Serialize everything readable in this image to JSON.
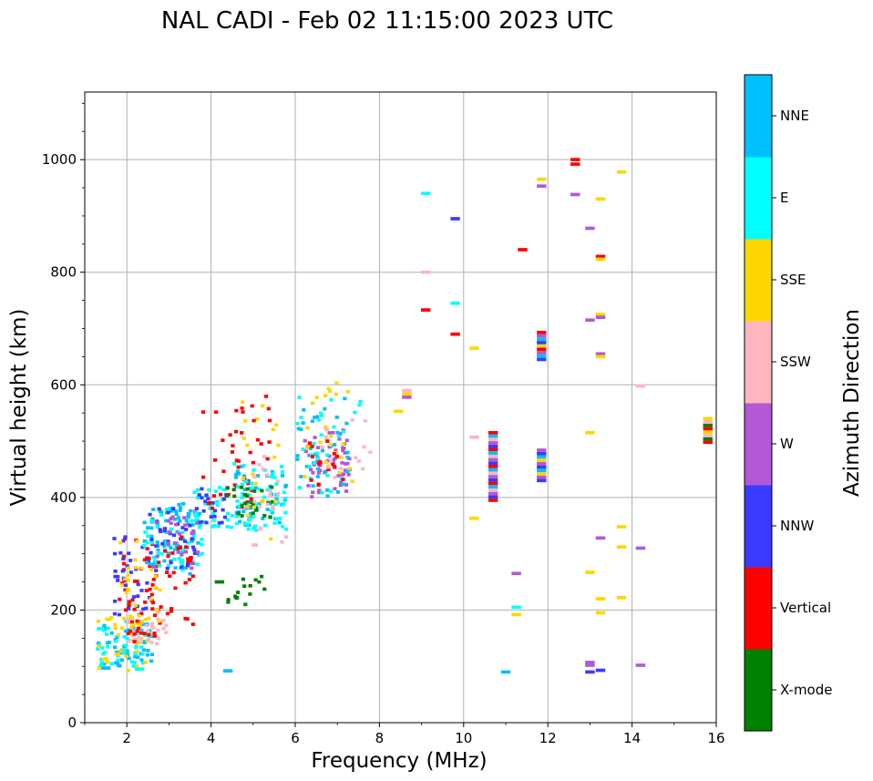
{
  "chart_data": {
    "type": "scatter",
    "title": "NAL CADI - Feb 02 11:15:00 2023 UTC",
    "xlabel": "Frequency (MHz)",
    "ylabel": "Virtual height (km)",
    "xlim": [
      1,
      16
    ],
    "ylim": [
      0,
      1120
    ],
    "xticks": [
      2,
      4,
      6,
      8,
      10,
      12,
      14,
      16
    ],
    "yticks": [
      0,
      200,
      400,
      600,
      800,
      1000
    ],
    "grid": true,
    "colorbar": {
      "label": "Azimuth Direction",
      "categories": [
        {
          "name": "X-mode",
          "color": "#008000"
        },
        {
          "name": "Vertical",
          "color": "#ff0000"
        },
        {
          "name": "NNW",
          "color": "#3b3bff"
        },
        {
          "name": "W",
          "color": "#b358d6"
        },
        {
          "name": "SSW",
          "color": "#ffb6c1"
        },
        {
          "name": "SSE",
          "color": "#ffd700"
        },
        {
          "name": "E",
          "color": "#00ffff"
        },
        {
          "name": "NNE",
          "color": "#00bfff"
        }
      ]
    },
    "clusters": [
      {
        "cat": "NNE",
        "f": [
          1.3,
          2.6
        ],
        "h": [
          100,
          180
        ],
        "n": 50,
        "seed": 1
      },
      {
        "cat": "E",
        "f": [
          1.3,
          2.6
        ],
        "h": [
          100,
          180
        ],
        "n": 40,
        "seed": 2
      },
      {
        "cat": "SSE",
        "f": [
          1.3,
          2.6
        ],
        "h": [
          90,
          190
        ],
        "n": 30,
        "seed": 3
      },
      {
        "cat": "SSW",
        "f": [
          2.0,
          3.0
        ],
        "h": [
          140,
          200
        ],
        "n": 30,
        "seed": 4
      },
      {
        "cat": "Vertical",
        "f": [
          1.8,
          2.8
        ],
        "h": [
          140,
          330
        ],
        "n": 55,
        "seed": 5
      },
      {
        "cat": "NNW",
        "f": [
          1.7,
          2.6
        ],
        "h": [
          190,
          330
        ],
        "n": 35,
        "seed": 6
      },
      {
        "cat": "SSE",
        "f": [
          1.8,
          2.8
        ],
        "h": [
          160,
          330
        ],
        "n": 30,
        "seed": 7
      },
      {
        "cat": "NNE",
        "f": [
          2.4,
          3.8
        ],
        "h": [
          260,
          390
        ],
        "n": 70,
        "seed": 8
      },
      {
        "cat": "E",
        "f": [
          2.4,
          3.8
        ],
        "h": [
          270,
          380
        ],
        "n": 45,
        "seed": 9
      },
      {
        "cat": "NNW",
        "f": [
          2.5,
          3.8
        ],
        "h": [
          270,
          380
        ],
        "n": 35,
        "seed": 10
      },
      {
        "cat": "W",
        "f": [
          2.6,
          3.8
        ],
        "h": [
          270,
          380
        ],
        "n": 25,
        "seed": 11
      },
      {
        "cat": "Vertical",
        "f": [
          2.8,
          3.6
        ],
        "h": [
          170,
          330
        ],
        "n": 25,
        "seed": 12
      },
      {
        "cat": "E",
        "f": [
          3.6,
          4.5
        ],
        "h": [
          340,
          420
        ],
        "n": 30,
        "seed": 13
      },
      {
        "cat": "NNW",
        "f": [
          3.6,
          4.4
        ],
        "h": [
          350,
          420
        ],
        "n": 20,
        "seed": 14
      },
      {
        "cat": "Vertical",
        "f": [
          3.8,
          5.0
        ],
        "h": [
          380,
          560
        ],
        "n": 30,
        "seed": 15
      },
      {
        "cat": "NNE",
        "f": [
          4.5,
          5.8
        ],
        "h": [
          340,
          460
        ],
        "n": 45,
        "seed": 16
      },
      {
        "cat": "E",
        "f": [
          4.5,
          5.8
        ],
        "h": [
          340,
          460
        ],
        "n": 55,
        "seed": 17
      },
      {
        "cat": "X-mode",
        "f": [
          4.3,
          5.5
        ],
        "h": [
          360,
          420
        ],
        "n": 25,
        "seed": 18
      },
      {
        "cat": "X-mode",
        "f": [
          4.4,
          5.3
        ],
        "h": [
          210,
          260
        ],
        "n": 15,
        "seed": 19
      },
      {
        "cat": "SSW",
        "f": [
          5.0,
          5.8
        ],
        "h": [
          310,
          480
        ],
        "n": 20,
        "seed": 20
      },
      {
        "cat": "SSE",
        "f": [
          4.6,
          5.6
        ],
        "h": [
          320,
          570
        ],
        "n": 20,
        "seed": 21
      },
      {
        "cat": "Vertical",
        "f": [
          4.5,
          5.6
        ],
        "h": [
          460,
          580
        ],
        "n": 15,
        "seed": 22
      },
      {
        "cat": "W",
        "f": [
          6.2,
          7.3
        ],
        "h": [
          400,
          520
        ],
        "n": 55,
        "seed": 23
      },
      {
        "cat": "NNE",
        "f": [
          6.0,
          7.3
        ],
        "h": [
          400,
          580
        ],
        "n": 35,
        "seed": 24
      },
      {
        "cat": "E",
        "f": [
          6.0,
          7.6
        ],
        "h": [
          400,
          580
        ],
        "n": 30,
        "seed": 25
      },
      {
        "cat": "SSE",
        "f": [
          6.2,
          7.4
        ],
        "h": [
          420,
          605
        ],
        "n": 25,
        "seed": 26
      },
      {
        "cat": "Vertical",
        "f": [
          6.3,
          7.2
        ],
        "h": [
          420,
          500
        ],
        "n": 15,
        "seed": 27
      },
      {
        "cat": "SSW",
        "f": [
          6.6,
          7.8
        ],
        "h": [
          430,
          540
        ],
        "n": 15,
        "seed": 28
      }
    ],
    "stacks": [
      {
        "f": 10.7,
        "h": [
          395,
          515
        ],
        "cats": [
          "Vertical",
          "NNW",
          "W",
          "SSW",
          "NNE"
        ]
      },
      {
        "f": 11.85,
        "h": [
          430,
          485
        ],
        "cats": [
          "NNW",
          "W",
          "SSE",
          "NNE"
        ]
      },
      {
        "f": 11.85,
        "h": [
          645,
          695
        ],
        "cats": [
          "NNW",
          "NNE",
          "W",
          "Vertical",
          "SSE"
        ]
      },
      {
        "f": 15.8,
        "h": [
          498,
          540
        ],
        "cats": [
          "Vertical",
          "X-mode",
          "SSW",
          "SSE"
        ]
      },
      {
        "f": 8.65,
        "h": [
          578,
          595
        ],
        "cats": [
          "W",
          "SSE",
          "SSW"
        ]
      }
    ],
    "points": [
      {
        "f": 9.1,
        "h": 940,
        "cat": "E"
      },
      {
        "f": 9.8,
        "h": 895,
        "cat": "NNW"
      },
      {
        "f": 9.1,
        "h": 800,
        "cat": "SSW"
      },
      {
        "f": 9.1,
        "h": 733,
        "cat": "Vertical"
      },
      {
        "f": 9.8,
        "h": 745,
        "cat": "E"
      },
      {
        "f": 9.8,
        "h": 690,
        "cat": "Vertical"
      },
      {
        "f": 10.25,
        "h": 665,
        "cat": "SSE"
      },
      {
        "f": 8.45,
        "h": 553,
        "cat": "SSE"
      },
      {
        "f": 10.25,
        "h": 507,
        "cat": "SSW"
      },
      {
        "f": 10.25,
        "h": 363,
        "cat": "SSE"
      },
      {
        "f": 11.85,
        "h": 965,
        "cat": "SSE"
      },
      {
        "f": 11.85,
        "h": 953,
        "cat": "W"
      },
      {
        "f": 11.4,
        "h": 840,
        "cat": "Vertical"
      },
      {
        "f": 12.65,
        "h": 1000,
        "cat": "Vertical"
      },
      {
        "f": 12.65,
        "h": 992,
        "cat": "Vertical"
      },
      {
        "f": 12.65,
        "h": 938,
        "cat": "W"
      },
      {
        "f": 13.25,
        "h": 930,
        "cat": "SSE"
      },
      {
        "f": 13.0,
        "h": 878,
        "cat": "W"
      },
      {
        "f": 13.25,
        "h": 828,
        "cat": "Vertical"
      },
      {
        "f": 13.25,
        "h": 823,
        "cat": "SSE"
      },
      {
        "f": 13.0,
        "h": 715,
        "cat": "W"
      },
      {
        "f": 13.25,
        "h": 725,
        "cat": "SSE"
      },
      {
        "f": 13.25,
        "h": 720,
        "cat": "W"
      },
      {
        "f": 13.25,
        "h": 655,
        "cat": "W"
      },
      {
        "f": 13.25,
        "h": 650,
        "cat": "SSE"
      },
      {
        "f": 13.75,
        "h": 978,
        "cat": "SSE"
      },
      {
        "f": 14.2,
        "h": 598,
        "cat": "SSW"
      },
      {
        "f": 13.0,
        "h": 515,
        "cat": "SSE"
      },
      {
        "f": 13.25,
        "h": 328,
        "cat": "W"
      },
      {
        "f": 13.75,
        "h": 348,
        "cat": "SSE"
      },
      {
        "f": 13.75,
        "h": 312,
        "cat": "SSE"
      },
      {
        "f": 14.2,
        "h": 310,
        "cat": "W"
      },
      {
        "f": 13.0,
        "h": 267,
        "cat": "SSE"
      },
      {
        "f": 13.25,
        "h": 220,
        "cat": "SSE"
      },
      {
        "f": 13.75,
        "h": 222,
        "cat": "SSE"
      },
      {
        "f": 13.25,
        "h": 195,
        "cat": "SSE"
      },
      {
        "f": 11.25,
        "h": 265,
        "cat": "W"
      },
      {
        "f": 11.25,
        "h": 205,
        "cat": "E"
      },
      {
        "f": 11.25,
        "h": 192,
        "cat": "SSE"
      },
      {
        "f": 11.0,
        "h": 90,
        "cat": "NNE"
      },
      {
        "f": 13.0,
        "h": 107,
        "cat": "W"
      },
      {
        "f": 13.0,
        "h": 102,
        "cat": "W"
      },
      {
        "f": 13.0,
        "h": 90,
        "cat": "NNW"
      },
      {
        "f": 13.25,
        "h": 93,
        "cat": "NNW"
      },
      {
        "f": 14.2,
        "h": 102,
        "cat": "W"
      },
      {
        "f": 4.4,
        "h": 92,
        "cat": "NNE"
      },
      {
        "f": 4.2,
        "h": 250,
        "cat": "X-mode"
      },
      {
        "f": 1.5,
        "h": 97,
        "cat": "NNE"
      },
      {
        "f": 2.3,
        "h": 95,
        "cat": "E"
      }
    ]
  }
}
